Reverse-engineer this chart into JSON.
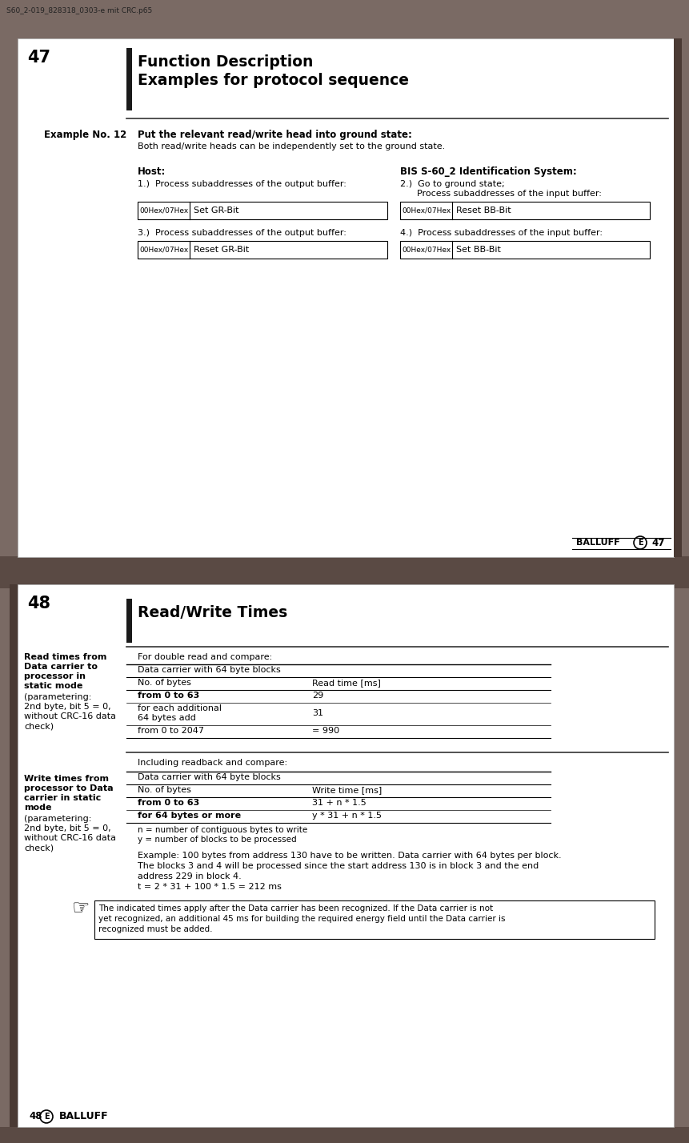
{
  "outer_bg": "#7a6a64",
  "page_bg": "#ffffff",
  "dark_bar": "#3a3230",
  "separator_bg": "#6a5a54",
  "page1": {
    "page_num": "47",
    "filename": "S60_2-019_828318_0303-e mit CRC.p65",
    "header_title1": "Function Description",
    "header_title2": "Examples for protocol sequence",
    "example_label": "Example No. 12",
    "example_title": "Put the relevant read/write head into ground state:",
    "example_desc": "Both read/write heads can be independently set to the ground state.",
    "host_label": "Host:",
    "bis_label": "BIS S-60_2 Identification System:",
    "step1": "1.)  Process subaddresses of the output buffer:",
    "step2_line1": "2.)  Go to ground state;",
    "step2_line2": "      Process subaddresses of the input buffer:",
    "step3": "3.)  Process subaddresses of the output buffer:",
    "step4": "4.)  Process subaddresses of the input buffer:",
    "box1_addr": "00Hex/07Hex",
    "box1_text": "Set GR-Bit",
    "box2_addr": "00Hex/07Hex",
    "box2_text": "Reset BB-Bit",
    "box3_addr": "00Hex/07Hex",
    "box3_text": "Reset GR-Bit",
    "box4_addr": "00Hex/07Hex",
    "box4_text": "Set BB-Bit"
  },
  "page2": {
    "page_num": "48",
    "header_title": "Read/Write Times",
    "read_intro": "For double read and compare:",
    "read_table_header": "Data carrier with 64 byte blocks",
    "read_col1": "No. of bytes",
    "read_col2": "Read time [ms]",
    "read_row1_c1": "from 0 to 63",
    "read_row1_c2": "29",
    "read_row2_c1a": "for each additional",
    "read_row2_c1b": "64 bytes add",
    "read_row2_c2": "31",
    "read_row3_c1": "from 0 to 2047",
    "read_row3_c2": "= 990",
    "write_intro": "Including readback and compare:",
    "write_table_header": "Data carrier with 64 byte blocks",
    "write_col1": "No. of bytes",
    "write_col2": "Write time [ms]",
    "write_row1_c1": "from 0 to 63",
    "write_row1_c2": "31 + n * 1.5",
    "write_row2_c1": "for 64 bytes or more",
    "write_row2_c2": "y * 31 + n * 1.5",
    "write_note1": "n = number of contiguous bytes to write",
    "write_note2": "y = number of blocks to be processed",
    "example_text1": "Example: 100 bytes from address 130 have to be written. Data carrier with 64 bytes per block.",
    "example_text2": "The blocks 3 and 4 will be processed since the start address 130 is in block 3 and the end",
    "example_text3": "address 229 in block 4.",
    "example_text4": "t = 2 * 31 + 100 * 1.5 = 212 ms",
    "note_text1": "The indicated times apply after the Data carrier has been recognized. If the Data carrier is not",
    "note_text2": "yet recognized, an additional 45 ms for building the required energy field until the Data carrier is",
    "note_text3": "recognized must be added."
  }
}
